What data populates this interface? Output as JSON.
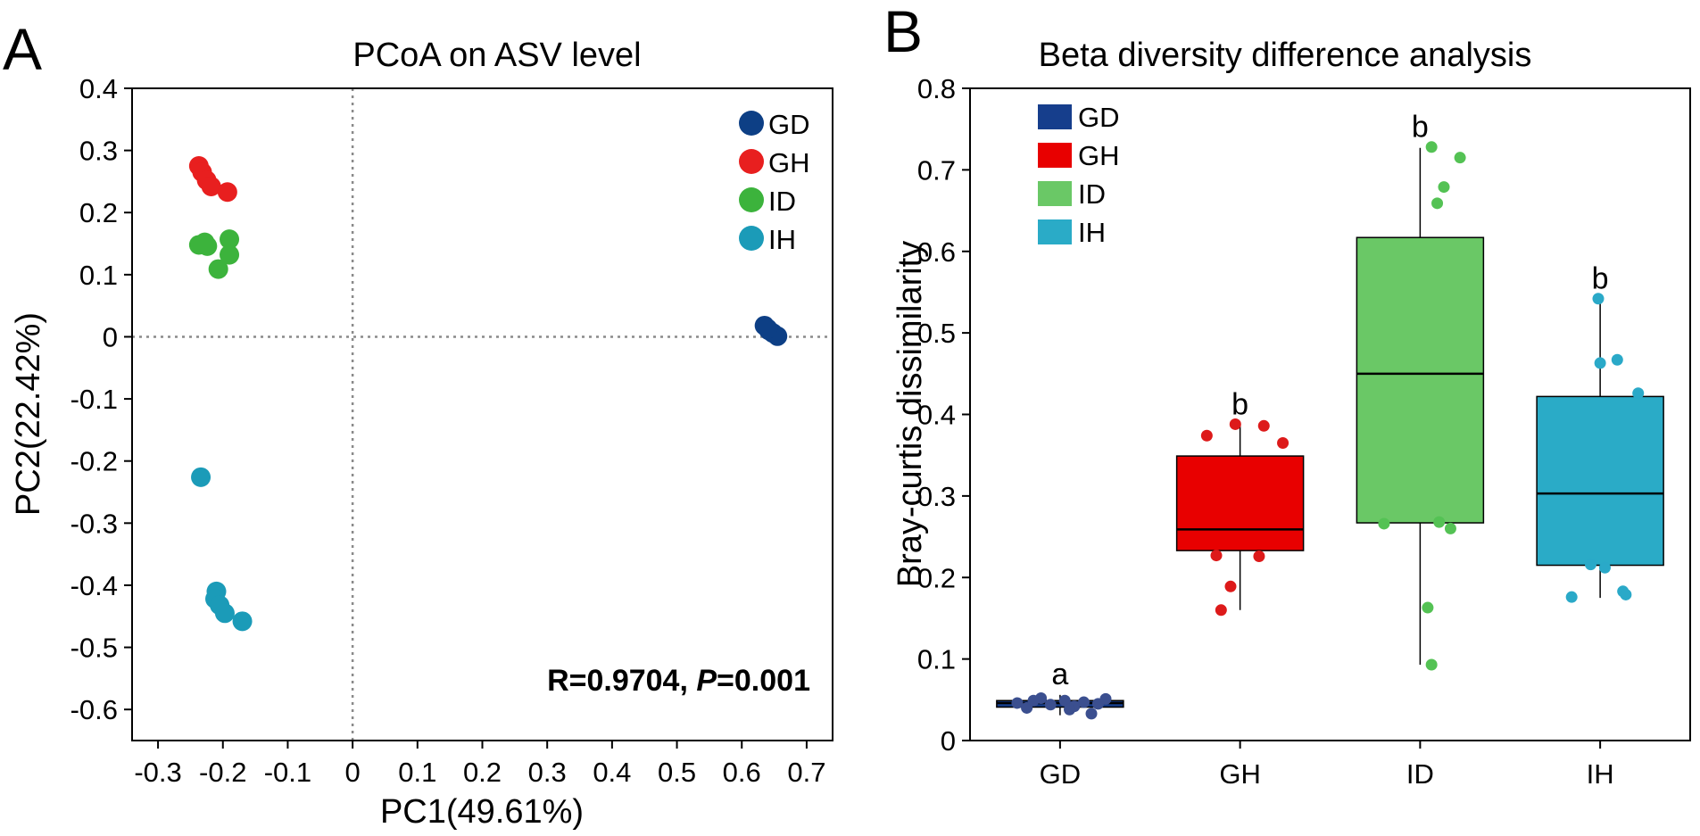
{
  "chart_data": [
    {
      "panel": "A",
      "type": "scatter",
      "title": "PCoA on ASV level",
      "xlabel": "PC1(49.61%)",
      "ylabel": "PC2(22.42%)",
      "xlim": [
        -0.34,
        0.74
      ],
      "ylim": [
        -0.65,
        0.4
      ],
      "xticks": [
        -0.3,
        -0.2,
        -0.1,
        0,
        0.1,
        0.2,
        0.3,
        0.4,
        0.5,
        0.6,
        0.7
      ],
      "xtick_labels": [
        "-0.3",
        "-0.2",
        "-0.1",
        "0",
        "0.1",
        "0.2",
        "0.3",
        "0.4",
        "0.5",
        "0.6",
        "0.7"
      ],
      "yticks": [
        0.4,
        0.3,
        0.2,
        0.1,
        0,
        -0.1,
        -0.2,
        -0.3,
        -0.4,
        -0.5,
        -0.6
      ],
      "ytick_labels": [
        "0.4",
        "0.3",
        "0.2",
        "0.1",
        "0",
        "-0.1",
        "-0.2",
        "-0.3",
        "-0.4",
        "-0.5",
        "-0.6"
      ],
      "reference_lines": {
        "x": 0,
        "y": 0
      },
      "legend_position": "top-right",
      "stat_text": {
        "r_part": "R=0.9704, ",
        "p_symbol": "P",
        "p_value": "=0.001"
      },
      "series": [
        {
          "name": "GD",
          "color": "#0d3f85",
          "points": [
            [
              0.635,
              0.018
            ],
            [
              0.642,
              0.01
            ],
            [
              0.648,
              0.006
            ],
            [
              0.655,
              0.001
            ],
            [
              0.64,
              0.013
            ]
          ]
        },
        {
          "name": "GH",
          "color": "#e81f1f",
          "points": [
            [
              -0.237,
              0.275
            ],
            [
              -0.232,
              0.265
            ],
            [
              -0.225,
              0.252
            ],
            [
              -0.218,
              0.242
            ],
            [
              -0.193,
              0.233
            ]
          ]
        },
        {
          "name": "ID",
          "color": "#3cb33c",
          "points": [
            [
              -0.237,
              0.148
            ],
            [
              -0.228,
              0.152
            ],
            [
              -0.224,
              0.146
            ],
            [
              -0.19,
              0.157
            ],
            [
              -0.19,
              0.132
            ],
            [
              -0.207,
              0.109
            ]
          ]
        },
        {
          "name": "IH",
          "color": "#1b9bb8",
          "points": [
            [
              -0.234,
              -0.226
            ],
            [
              -0.21,
              -0.41
            ],
            [
              -0.212,
              -0.422
            ],
            [
              -0.205,
              -0.432
            ],
            [
              -0.197,
              -0.445
            ],
            [
              -0.17,
              -0.458
            ]
          ]
        }
      ]
    },
    {
      "panel": "B",
      "type": "box",
      "title": "Beta diversity difference analysis",
      "xlabel": "",
      "ylabel": "Bray-curtis dissimilarity",
      "ylim": [
        0,
        0.8
      ],
      "yticks": [
        0,
        0.1,
        0.2,
        0.3,
        0.4,
        0.5,
        0.6,
        0.7,
        0.8
      ],
      "ytick_labels": [
        "0",
        "0.1",
        "0.2",
        "0.3",
        "0.4",
        "0.5",
        "0.6",
        "0.7",
        "0.8"
      ],
      "categories": [
        "GD",
        "GH",
        "ID",
        "IH"
      ],
      "legend_position": "top-left",
      "series": [
        {
          "name": "GD",
          "color": "#163e8c",
          "point_color": "#3b4f8f",
          "significance": "a",
          "box": {
            "whisker_low": 0.031,
            "q1": 0.041,
            "median": 0.046,
            "q3": 0.049,
            "whisker_high": 0.056
          },
          "points": [
            [
              -0.45,
              0.046
            ],
            [
              -0.35,
              0.04
            ],
            [
              -0.2,
              0.052
            ],
            [
              -0.1,
              0.044
            ],
            [
              0.05,
              0.049
            ],
            [
              0.15,
              0.042
            ],
            [
              0.25,
              0.047
            ],
            [
              0.33,
              0.033
            ],
            [
              0.4,
              0.045
            ],
            [
              0.48,
              0.051
            ],
            [
              -0.28,
              0.049
            ],
            [
              0.1,
              0.038
            ]
          ]
        },
        {
          "name": "GH",
          "color": "#e80000",
          "point_color": "#dd1a1a",
          "significance": "b",
          "box": {
            "whisker_low": 0.16,
            "q1": 0.233,
            "median": 0.259,
            "q3": 0.349,
            "whisker_high": 0.387
          },
          "points": [
            [
              -0.35,
              0.374
            ],
            [
              -0.05,
              0.388
            ],
            [
              0.25,
              0.386
            ],
            [
              0.45,
              0.365
            ],
            [
              -0.25,
              0.227
            ],
            [
              0.2,
              0.226
            ],
            [
              -0.1,
              0.189
            ],
            [
              -0.2,
              0.16
            ]
          ]
        },
        {
          "name": "ID",
          "color": "#6ac866",
          "point_color": "#54c254",
          "significance": "b",
          "box": {
            "whisker_low": 0.093,
            "q1": 0.267,
            "median": 0.45,
            "q3": 0.617,
            "whisker_high": 0.727
          },
          "points": [
            [
              0.12,
              0.728
            ],
            [
              0.42,
              0.715
            ],
            [
              0.25,
              0.679
            ],
            [
              0.18,
              0.659
            ],
            [
              -0.38,
              0.266
            ],
            [
              0.2,
              0.268
            ],
            [
              0.32,
              0.26
            ],
            [
              0.08,
              0.163
            ],
            [
              0.12,
              0.093
            ]
          ]
        },
        {
          "name": "IH",
          "color": "#2aabc7",
          "point_color": "#2aa9c8",
          "significance": "b",
          "box": {
            "whisker_low": 0.175,
            "q1": 0.215,
            "median": 0.303,
            "q3": 0.422,
            "whisker_high": 0.541
          },
          "points": [
            [
              -0.02,
              0.542
            ],
            [
              0.0,
              0.463
            ],
            [
              0.18,
              0.467
            ],
            [
              0.4,
              0.426
            ],
            [
              -0.1,
              0.216
            ],
            [
              0.05,
              0.212
            ],
            [
              0.24,
              0.183
            ],
            [
              0.27,
              0.179
            ],
            [
              -0.3,
              0.176
            ]
          ]
        }
      ]
    }
  ]
}
